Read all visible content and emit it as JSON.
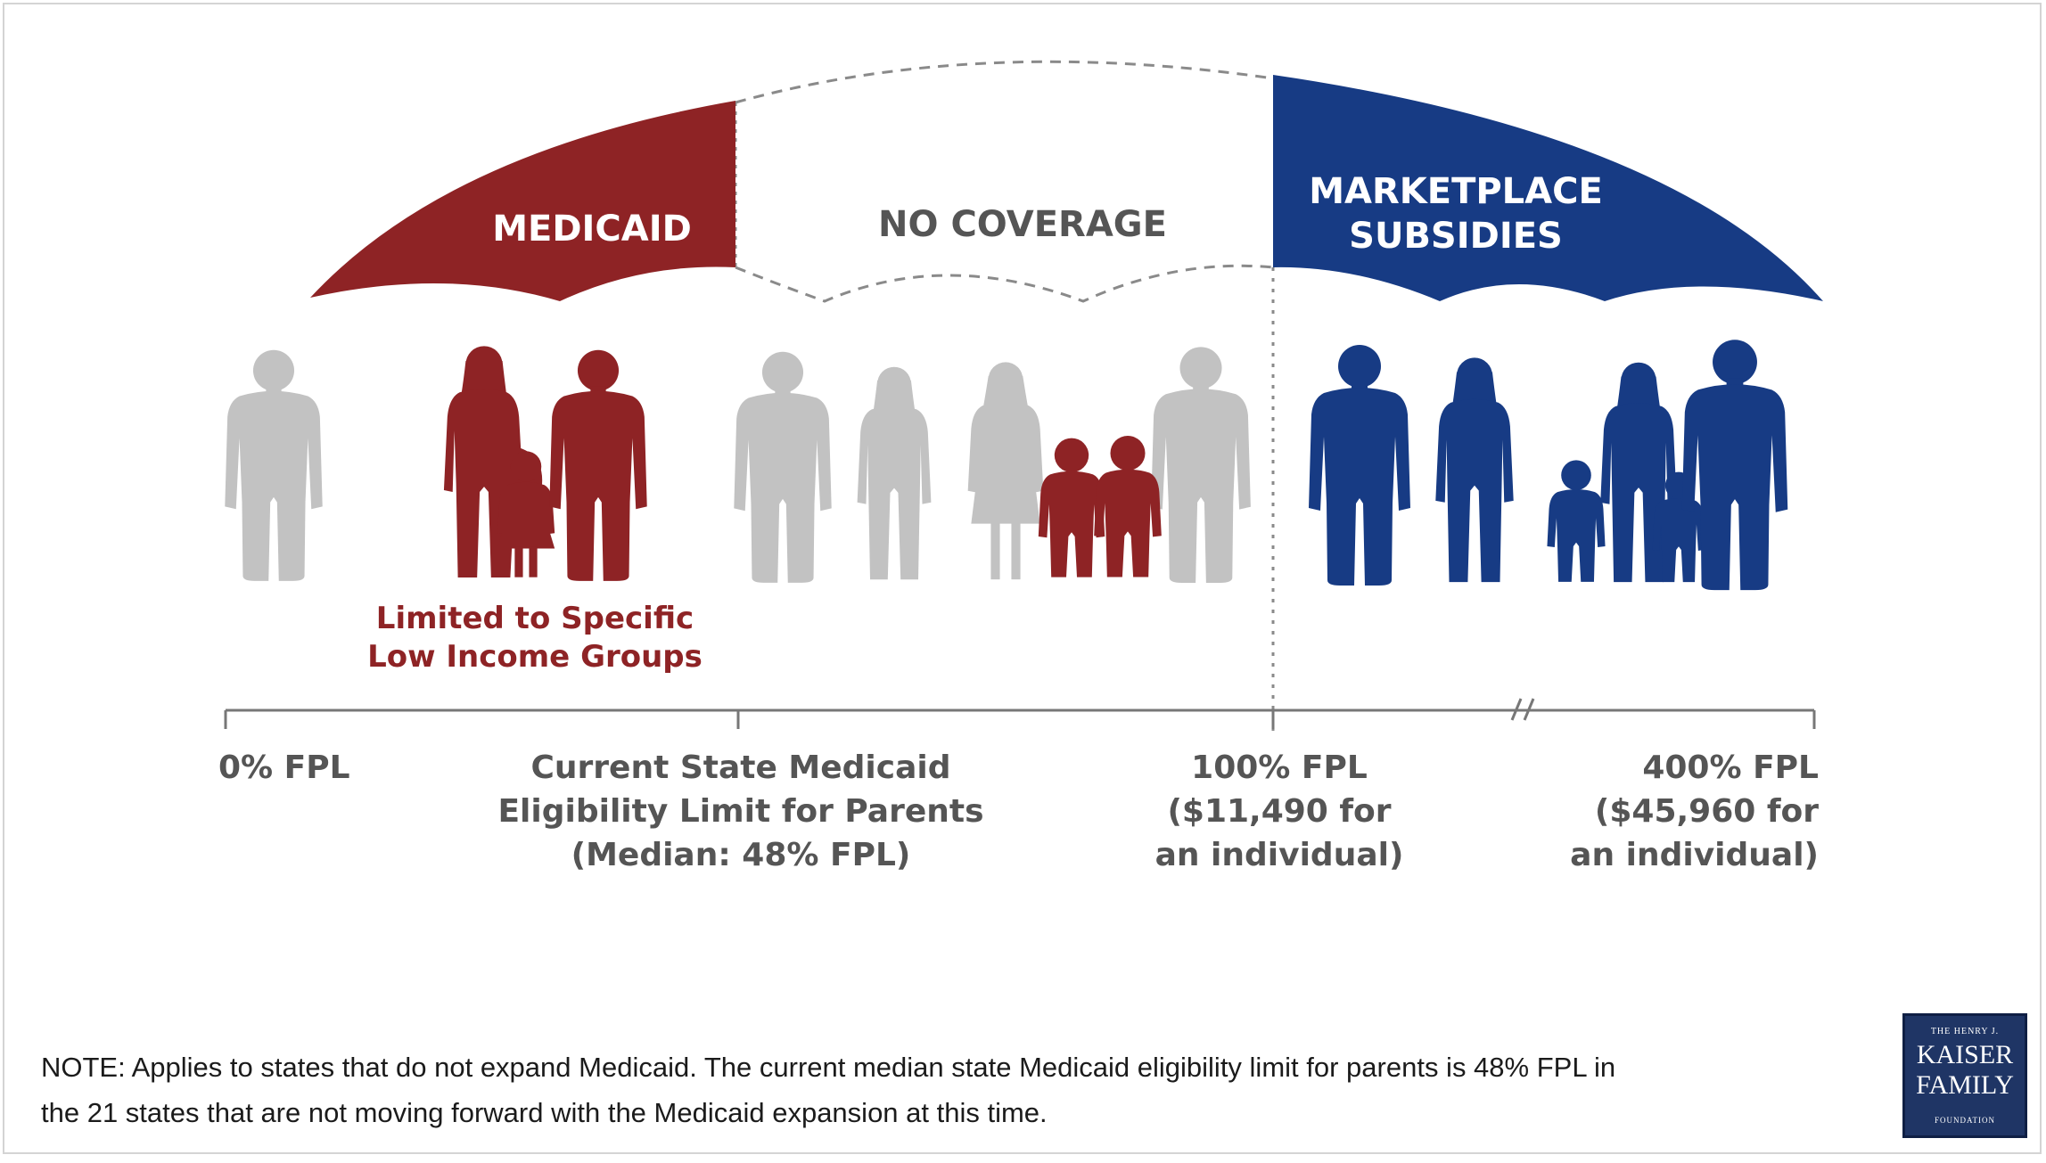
{
  "labels": {
    "medicaid": "MEDICAID",
    "no_coverage": "NO COVERAGE",
    "marketplace_line1": "MARKETPLACE",
    "marketplace_line2": "SUBSIDIES",
    "limited_line1": "Limited to Specific",
    "limited_line2": "Low Income Groups"
  },
  "axis": {
    "tick_0": "0% FPL",
    "tick_current_line1": "Current State Medicaid",
    "tick_current_line2": "Eligibility Limit for Parents",
    "tick_current_line3": "(Median: 48% FPL)",
    "tick_100_line1": "100% FPL",
    "tick_100_line2": "($11,490 for",
    "tick_100_line3": "an individual)",
    "tick_400_line1": "400% FPL",
    "tick_400_line2": "($45,960 for",
    "tick_400_line3": "an individual)"
  },
  "note": {
    "line1": "NOTE: Applies  to states that do not expand Medicaid. The current median state Medicaid eligibility limit for parents is 48% FPL in",
    "line2": "the 21 states that are not moving forward with the Medicaid expansion at this time."
  },
  "logo": {
    "top": "THE HENRY J.",
    "line1": "KAISER",
    "line2": "FAMILY",
    "bottom": "FOUNDATION"
  },
  "colors": {
    "medicaid_red": "#8e2325",
    "marketplace_blue": "#173b84",
    "person_gray": "#c2c2c2",
    "axis_gray": "#777777",
    "text_gray": "#555555"
  }
}
